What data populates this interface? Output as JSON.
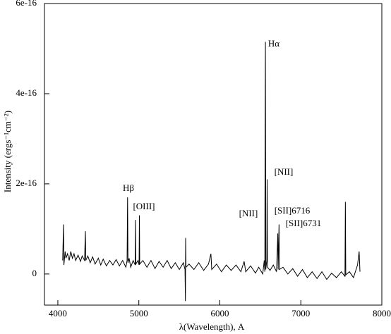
{
  "chart_data": {
    "type": "line",
    "x_label": "λ(Wavelength), A",
    "y_label": "Intensity (ergs⁻¹cm⁻²)",
    "xlim": [
      3835,
      8000
    ],
    "ylim": [
      -6.9e-17,
      6e-16
    ],
    "xticks": [
      4000,
      5000,
      6000,
      7000,
      8000
    ],
    "yticks": [
      0,
      2e-16,
      4e-16,
      6e-16
    ],
    "annotations": [
      "Hα",
      "Hβ",
      "[OIII]",
      "[NII]",
      "[NII]",
      "[SII]6716",
      "[SII]6731"
    ],
    "series": [
      {
        "color": "#000000",
        "x": [
          4060,
          4070,
          4075,
          4090,
          4100,
          4120,
          4140,
          4160,
          4180,
          4200,
          4220,
          4250,
          4280,
          4300,
          4330,
          4340,
          4345,
          4370,
          4400,
          4430,
          4460,
          4500,
          4530,
          4560,
          4600,
          4640,
          4680,
          4720,
          4760,
          4800,
          4840,
          4855,
          4861,
          4866,
          4880,
          4900,
          4930,
          4955,
          4959,
          4963,
          4990,
          5003,
          5007,
          5011,
          5050,
          5100,
          5150,
          5200,
          5250,
          5300,
          5350,
          5400,
          5450,
          5500,
          5550,
          5570,
          5575,
          5578,
          5582,
          5620,
          5680,
          5740,
          5800,
          5860,
          5890,
          5900,
          5960,
          6020,
          6080,
          6140,
          6200,
          6260,
          6300,
          6320,
          6380,
          6440,
          6480,
          6530,
          6548,
          6555,
          6560,
          6563,
          6567,
          6580,
          6584,
          6588,
          6620,
          6660,
          6700,
          6716,
          6720,
          6731,
          6735,
          6780,
          6840,
          6900,
          6960,
          7020,
          7080,
          7140,
          7200,
          7260,
          7320,
          7380,
          7440,
          7500,
          7545,
          7550,
          7555,
          7600,
          7650,
          7700,
          7720,
          7730
        ],
        "values": [
          3e-17,
          1.1e-16,
          2e-17,
          5e-17,
          3.5e-17,
          4.5e-17,
          3e-17,
          5e-17,
          3.5e-17,
          4.5e-17,
          3e-17,
          4.2e-17,
          2.8e-17,
          4e-17,
          3e-17,
          9.5e-17,
          3e-17,
          4e-17,
          2.5e-17,
          3.8e-17,
          2.2e-17,
          3.5e-17,
          2e-17,
          3.3e-17,
          1.8e-17,
          3e-17,
          2e-17,
          3.2e-17,
          1.8e-17,
          3e-17,
          1.5e-17,
          3e-17,
          1.7e-16,
          2.5e-17,
          3.5e-17,
          1.5e-17,
          3e-17,
          2e-17,
          1.2e-16,
          2.2e-17,
          3e-17,
          2e-17,
          1.3e-16,
          2.2e-17,
          3e-17,
          1.5e-17,
          3e-17,
          1.2e-17,
          2.8e-17,
          1.5e-17,
          3e-17,
          1.2e-17,
          2.5e-17,
          1e-17,
          2.5e-17,
          1e-17,
          -6e-17,
          8e-17,
          1.5e-17,
          2.2e-17,
          1e-17,
          2.5e-17,
          8e-18,
          2.2e-17,
          4.5e-17,
          1e-17,
          2.2e-17,
          5e-18,
          2e-17,
          8e-18,
          2e-17,
          5e-18,
          2.8e-17,
          5e-18,
          1.8e-17,
          2e-18,
          1.5e-17,
          0,
          3e-17,
          5e-18,
          3.5e-16,
          5.15e-16,
          1e-17,
          3e-17,
          2.1e-16,
          1.5e-17,
          8e-18,
          2e-17,
          5e-18,
          9e-17,
          1e-17,
          1.1e-16,
          1e-17,
          1.5e-17,
          0,
          1.2e-17,
          -5e-18,
          1e-17,
          -8e-18,
          5e-18,
          -1e-17,
          5e-18,
          -1.2e-17,
          2e-18,
          -8e-18,
          5e-18,
          -5e-18,
          1.6e-16,
          -2e-18,
          5e-18,
          -8e-18,
          2e-17,
          5e-17,
          5e-18
        ]
      }
    ]
  }
}
